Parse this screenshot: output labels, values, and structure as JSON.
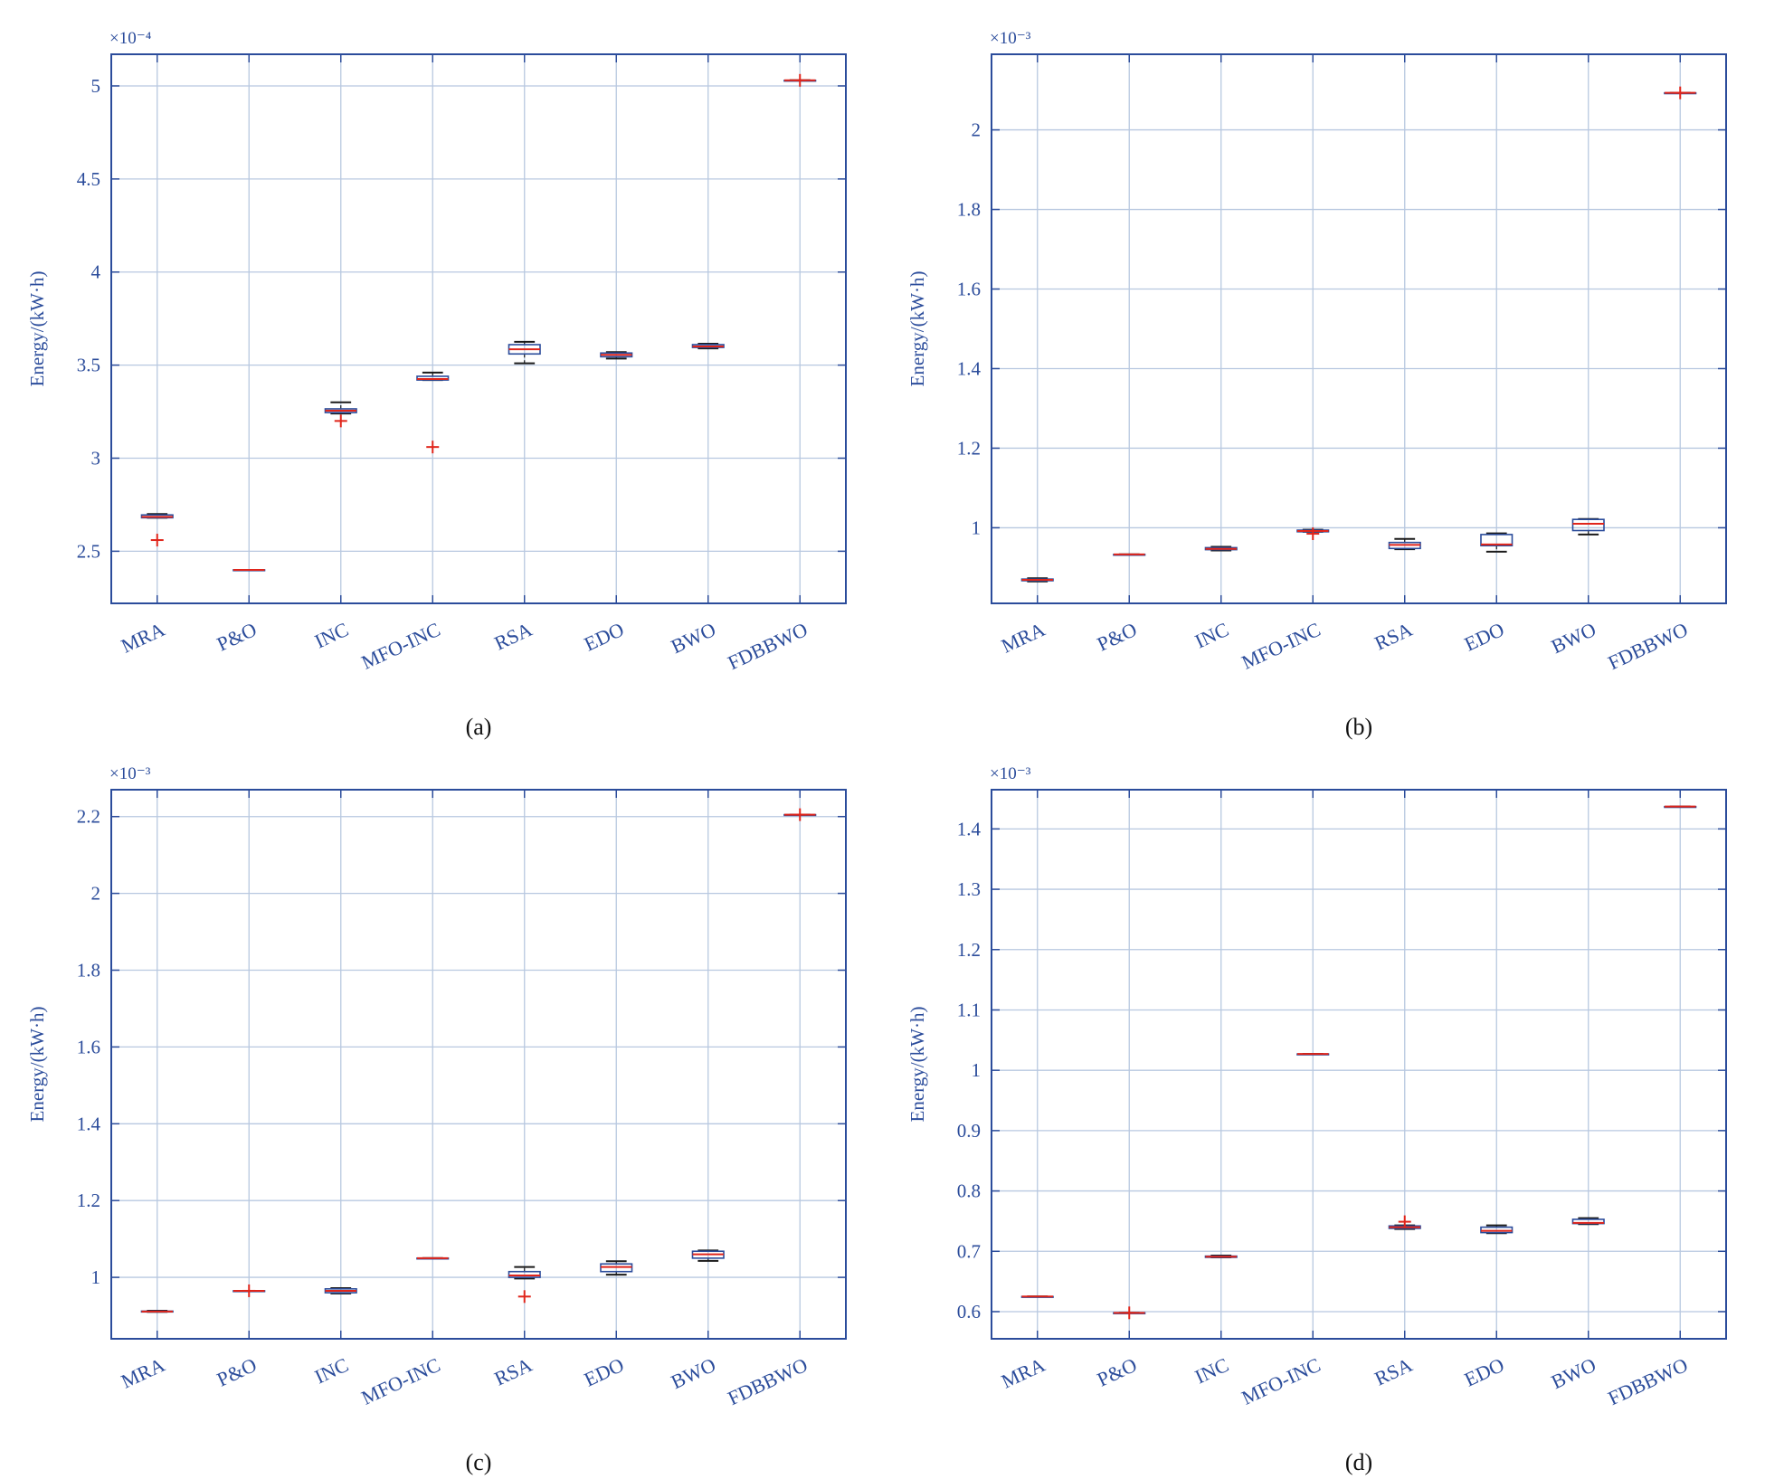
{
  "style": {
    "axis_color": "#2b4c9b",
    "grid_color": "#b8c8e0",
    "box_color": "#2b4c9b",
    "median_color": "#e0251b",
    "outlier_color": "#e0251b",
    "whisker_color": "#1a1a1a",
    "text_color": "#2b4c9b"
  },
  "chart_data": [
    {
      "type": "box",
      "panel_label": "(a)",
      "ylabel": "Energy/(kW·h)",
      "exponent_label": "×10⁻⁴",
      "ylim": [
        2.22,
        5.17
      ],
      "yticks": [
        2.5,
        3,
        3.5,
        4,
        4.5,
        5
      ],
      "ytick_labels": [
        "2.5",
        "3",
        "3.5",
        "4",
        "4.5",
        "5"
      ],
      "grid": true,
      "categories": [
        "MRA",
        "P&O",
        "INC",
        "MFO-INC",
        "RSA",
        "EDO",
        "BWO",
        "FDBBWO"
      ],
      "boxes": [
        {
          "min": 2.68,
          "q1": 2.68,
          "median": 2.685,
          "q3": 2.695,
          "max": 2.7,
          "outliers": [
            2.56
          ]
        },
        {
          "min": 2.4,
          "q1": 2.4,
          "median": 2.4,
          "q3": 2.4,
          "max": 2.4,
          "outliers": []
        },
        {
          "min": 3.24,
          "q1": 3.245,
          "median": 3.255,
          "q3": 3.265,
          "max": 3.3,
          "outliers": [
            3.2
          ]
        },
        {
          "min": 3.42,
          "q1": 3.42,
          "median": 3.425,
          "q3": 3.44,
          "max": 3.46,
          "outliers": [
            3.06
          ]
        },
        {
          "min": 3.51,
          "q1": 3.56,
          "median": 3.585,
          "q3": 3.61,
          "max": 3.625,
          "outliers": []
        },
        {
          "min": 3.535,
          "q1": 3.545,
          "median": 3.555,
          "q3": 3.565,
          "max": 3.57,
          "outliers": []
        },
        {
          "min": 3.59,
          "q1": 3.595,
          "median": 3.6,
          "q3": 3.61,
          "max": 3.615,
          "outliers": []
        },
        {
          "min": 5.03,
          "q1": 5.03,
          "median": 5.03,
          "q3": 5.03,
          "max": 5.03,
          "outliers": [
            5.03
          ]
        }
      ]
    },
    {
      "type": "box",
      "panel_label": "(b)",
      "ylabel": "Energy/(kW·h)",
      "exponent_label": "×10⁻³",
      "ylim": [
        0.81,
        2.19
      ],
      "yticks": [
        1,
        1.2,
        1.4,
        1.6,
        1.8,
        2
      ],
      "ytick_labels": [
        "1",
        "1.2",
        "1.4",
        "1.6",
        "1.8",
        "2"
      ],
      "grid": true,
      "categories": [
        "MRA",
        "P&O",
        "INC",
        "MFO-INC",
        "RSA",
        "EDO",
        "BWO",
        "FDBBWO"
      ],
      "boxes": [
        {
          "min": 0.865,
          "q1": 0.867,
          "median": 0.869,
          "q3": 0.871,
          "max": 0.873,
          "outliers": []
        },
        {
          "min": 0.933,
          "q1": 0.933,
          "median": 0.933,
          "q3": 0.933,
          "max": 0.933,
          "outliers": []
        },
        {
          "min": 0.943,
          "q1": 0.945,
          "median": 0.947,
          "q3": 0.95,
          "max": 0.952,
          "outliers": []
        },
        {
          "min": 0.99,
          "q1": 0.99,
          "median": 0.992,
          "q3": 0.994,
          "max": 0.995,
          "outliers": [
            0.985
          ]
        },
        {
          "min": 0.946,
          "q1": 0.948,
          "median": 0.957,
          "q3": 0.963,
          "max": 0.972,
          "outliers": []
        },
        {
          "min": 0.94,
          "q1": 0.955,
          "median": 0.958,
          "q3": 0.983,
          "max": 0.986,
          "outliers": []
        },
        {
          "min": 0.983,
          "q1": 0.993,
          "median": 1.01,
          "q3": 1.021,
          "max": 1.022,
          "outliers": []
        },
        {
          "min": 2.093,
          "q1": 2.093,
          "median": 2.093,
          "q3": 2.093,
          "max": 2.093,
          "outliers": [
            2.093
          ]
        }
      ]
    },
    {
      "type": "box",
      "panel_label": "(c)",
      "ylabel": "Energy/(kW·h)",
      "exponent_label": "×10⁻³",
      "ylim": [
        0.84,
        2.27
      ],
      "yticks": [
        1,
        1.2,
        1.4,
        1.6,
        1.8,
        2,
        2.2
      ],
      "ytick_labels": [
        "1",
        "1.2",
        "1.4",
        "1.6",
        "1.8",
        "2",
        "2.2"
      ],
      "grid": true,
      "categories": [
        "MRA",
        "P&O",
        "INC",
        "MFO-INC",
        "RSA",
        "EDO",
        "BWO",
        "FDBBWO"
      ],
      "boxes": [
        {
          "min": 0.91,
          "q1": 0.91,
          "median": 0.911,
          "q3": 0.912,
          "max": 0.913,
          "outliers": []
        },
        {
          "min": 0.965,
          "q1": 0.965,
          "median": 0.965,
          "q3": 0.965,
          "max": 0.965,
          "outliers": [
            0.965
          ]
        },
        {
          "min": 0.958,
          "q1": 0.96,
          "median": 0.965,
          "q3": 0.97,
          "max": 0.972,
          "outliers": []
        },
        {
          "min": 1.05,
          "q1": 1.05,
          "median": 1.05,
          "q3": 1.05,
          "max": 1.05,
          "outliers": []
        },
        {
          "min": 0.997,
          "q1": 1.0,
          "median": 1.005,
          "q3": 1.015,
          "max": 1.027,
          "outliers": [
            0.95
          ]
        },
        {
          "min": 1.007,
          "q1": 1.015,
          "median": 1.027,
          "q3": 1.035,
          "max": 1.042,
          "outliers": []
        },
        {
          "min": 1.043,
          "q1": 1.05,
          "median": 1.06,
          "q3": 1.068,
          "max": 1.07,
          "outliers": []
        },
        {
          "min": 2.205,
          "q1": 2.205,
          "median": 2.205,
          "q3": 2.205,
          "max": 2.205,
          "outliers": [
            2.205
          ]
        }
      ]
    },
    {
      "type": "box",
      "panel_label": "(d)",
      "ylabel": "Energy/(kW·h)",
      "exponent_label": "×10⁻³",
      "ylim": [
        0.555,
        1.465
      ],
      "yticks": [
        0.6,
        0.7,
        0.8,
        0.9,
        1,
        1.1,
        1.2,
        1.3,
        1.4
      ],
      "ytick_labels": [
        "0.6",
        "0.7",
        "0.8",
        "0.9",
        "1",
        "1.1",
        "1.2",
        "1.3",
        "1.4"
      ],
      "grid": true,
      "categories": [
        "MRA",
        "P&O",
        "INC",
        "MFO-INC",
        "RSA",
        "EDO",
        "BWO",
        "FDBBWO"
      ],
      "boxes": [
        {
          "min": 0.625,
          "q1": 0.625,
          "median": 0.625,
          "q3": 0.625,
          "max": 0.625,
          "outliers": []
        },
        {
          "min": 0.598,
          "q1": 0.598,
          "median": 0.598,
          "q3": 0.598,
          "max": 0.598,
          "outliers": [
            0.598
          ]
        },
        {
          "min": 0.69,
          "q1": 0.69,
          "median": 0.691,
          "q3": 0.692,
          "max": 0.693,
          "outliers": []
        },
        {
          "min": 1.027,
          "q1": 1.027,
          "median": 1.027,
          "q3": 1.027,
          "max": 1.027,
          "outliers": []
        },
        {
          "min": 0.737,
          "q1": 0.738,
          "median": 0.74,
          "q3": 0.742,
          "max": 0.743,
          "outliers": [
            0.749
          ]
        },
        {
          "min": 0.73,
          "q1": 0.731,
          "median": 0.734,
          "q3": 0.74,
          "max": 0.743,
          "outliers": []
        },
        {
          "min": 0.745,
          "q1": 0.746,
          "median": 0.747,
          "q3": 0.753,
          "max": 0.755,
          "outliers": []
        },
        {
          "min": 1.437,
          "q1": 1.437,
          "median": 1.437,
          "q3": 1.437,
          "max": 1.437,
          "outliers": []
        }
      ]
    }
  ]
}
